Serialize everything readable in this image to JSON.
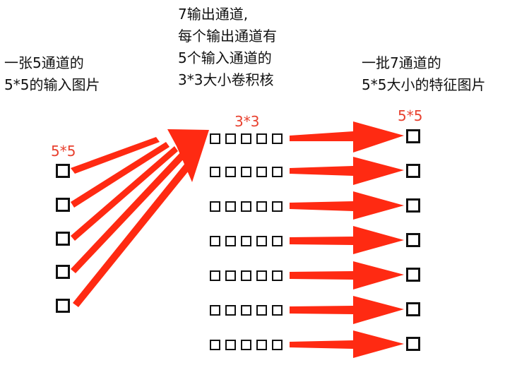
{
  "labels": {
    "input_caption": "一张5通道的\n5*5的输入图片",
    "kernel_caption": "7输出通道,\n每个输出通道有\n5个输入通道的\n3*3大小卷积核",
    "output_caption": "一批7通道的\n5*5大小的特征图片",
    "input_size": "5*5",
    "kernel_size": "3*3",
    "output_size": "5*5"
  },
  "structure": {
    "input_channels": 5,
    "output_channels": 7,
    "kernels_per_output": 5
  },
  "colors": {
    "arrow": "#ff2a12",
    "label": "#e8412f",
    "box": "#111111"
  }
}
